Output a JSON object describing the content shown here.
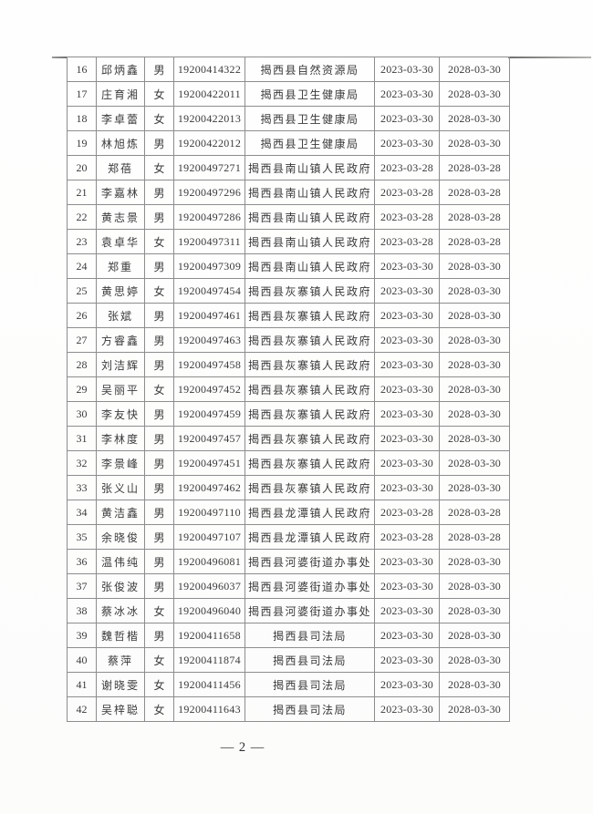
{
  "page": {
    "footer_page_number": "— 2 —"
  },
  "table": {
    "rows": [
      [
        "16",
        "邱炳鑫",
        "男",
        "19200414322",
        "揭西县自然资源局",
        "2023-03-30",
        "2028-03-30"
      ],
      [
        "17",
        "庄育湘",
        "女",
        "19200422011",
        "揭西县卫生健康局",
        "2023-03-30",
        "2028-03-30"
      ],
      [
        "18",
        "李卓蕾",
        "女",
        "19200422013",
        "揭西县卫生健康局",
        "2023-03-30",
        "2028-03-30"
      ],
      [
        "19",
        "林旭炼",
        "男",
        "19200422012",
        "揭西县卫生健康局",
        "2023-03-30",
        "2028-03-30"
      ],
      [
        "20",
        "郑蓓",
        "女",
        "19200497271",
        "揭西县南山镇人民政府",
        "2023-03-28",
        "2028-03-28"
      ],
      [
        "21",
        "李嘉林",
        "男",
        "19200497296",
        "揭西县南山镇人民政府",
        "2023-03-28",
        "2028-03-28"
      ],
      [
        "22",
        "黄志景",
        "男",
        "19200497286",
        "揭西县南山镇人民政府",
        "2023-03-28",
        "2028-03-28"
      ],
      [
        "23",
        "袁卓华",
        "女",
        "19200497311",
        "揭西县南山镇人民政府",
        "2023-03-28",
        "2028-03-28"
      ],
      [
        "24",
        "郑重",
        "男",
        "19200497309",
        "揭西县南山镇人民政府",
        "2023-03-30",
        "2028-03-30"
      ],
      [
        "25",
        "黄思婷",
        "女",
        "19200497454",
        "揭西县灰寨镇人民政府",
        "2023-03-30",
        "2028-03-30"
      ],
      [
        "26",
        "张斌",
        "男",
        "19200497461",
        "揭西县灰寨镇人民政府",
        "2023-03-30",
        "2028-03-30"
      ],
      [
        "27",
        "方睿鑫",
        "男",
        "19200497463",
        "揭西县灰寨镇人民政府",
        "2023-03-30",
        "2028-03-30"
      ],
      [
        "28",
        "刘洁辉",
        "男",
        "19200497458",
        "揭西县灰寨镇人民政府",
        "2023-03-30",
        "2028-03-30"
      ],
      [
        "29",
        "吴丽平",
        "女",
        "19200497452",
        "揭西县灰寨镇人民政府",
        "2023-03-30",
        "2028-03-30"
      ],
      [
        "30",
        "李友快",
        "男",
        "19200497459",
        "揭西县灰寨镇人民政府",
        "2023-03-30",
        "2028-03-30"
      ],
      [
        "31",
        "李林度",
        "男",
        "19200497457",
        "揭西县灰寨镇人民政府",
        "2023-03-30",
        "2028-03-30"
      ],
      [
        "32",
        "李景峰",
        "男",
        "19200497451",
        "揭西县灰寨镇人民政府",
        "2023-03-30",
        "2028-03-30"
      ],
      [
        "33",
        "张义山",
        "男",
        "19200497462",
        "揭西县灰寨镇人民政府",
        "2023-03-30",
        "2028-03-30"
      ],
      [
        "34",
        "黄洁鑫",
        "男",
        "19200497110",
        "揭西县龙潭镇人民政府",
        "2023-03-28",
        "2028-03-28"
      ],
      [
        "35",
        "余晓俊",
        "男",
        "19200497107",
        "揭西县龙潭镇人民政府",
        "2023-03-28",
        "2028-03-28"
      ],
      [
        "36",
        "温伟纯",
        "男",
        "19200496081",
        "揭西县河婆街道办事处",
        "2023-03-30",
        "2028-03-30"
      ],
      [
        "37",
        "张俊波",
        "男",
        "19200496037",
        "揭西县河婆街道办事处",
        "2023-03-30",
        "2028-03-30"
      ],
      [
        "38",
        "蔡冰冰",
        "女",
        "19200496040",
        "揭西县河婆街道办事处",
        "2023-03-30",
        "2028-03-30"
      ],
      [
        "39",
        "魏哲楷",
        "男",
        "19200411658",
        "揭西县司法局",
        "2023-03-30",
        "2028-03-30"
      ],
      [
        "40",
        "蔡萍",
        "女",
        "19200411874",
        "揭西县司法局",
        "2023-03-30",
        "2028-03-30"
      ],
      [
        "41",
        "谢晓雯",
        "女",
        "19200411456",
        "揭西县司法局",
        "2023-03-30",
        "2028-03-30"
      ],
      [
        "42",
        "吴梓聪",
        "女",
        "19200411643",
        "揭西县司法局",
        "2023-03-30",
        "2028-03-30"
      ]
    ]
  }
}
